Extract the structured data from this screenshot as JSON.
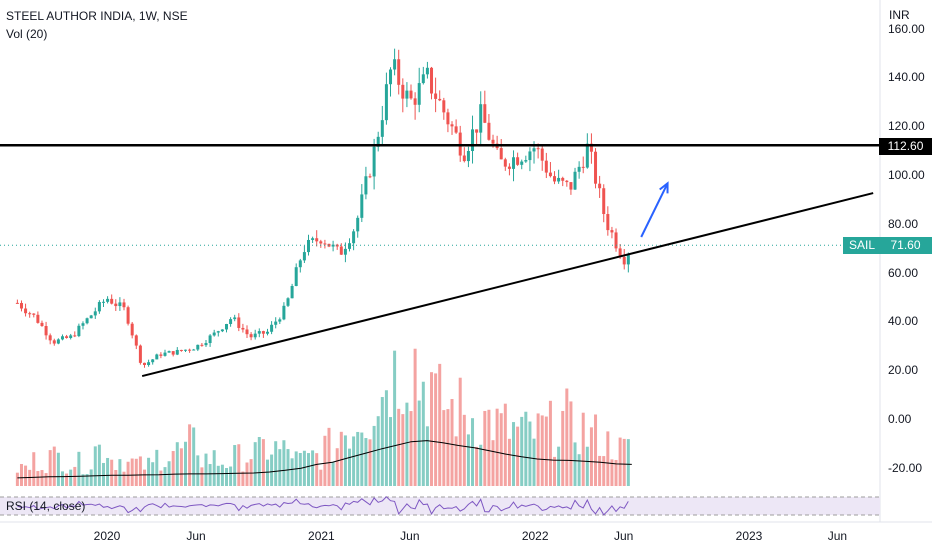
{
  "header": {
    "title": "STEEL AUTHOR INDIA, 1W, NSE",
    "volume_label": "Vol (20)",
    "rsi_label": "RSI (14, close)",
    "currency": "INR"
  },
  "price_axis": {
    "ticks": [
      {
        "value": 160,
        "label": "160.00"
      },
      {
        "value": 140,
        "label": "140.00"
      },
      {
        "value": 120,
        "label": "120.00"
      },
      {
        "value": 100,
        "label": "100.00"
      },
      {
        "value": 80,
        "label": "80.00"
      },
      {
        "value": 60,
        "label": "60.00"
      },
      {
        "value": 40,
        "label": "40.00"
      },
      {
        "value": 20,
        "label": "20.00"
      },
      {
        "value": 0,
        "label": "0.00"
      },
      {
        "value": -20,
        "label": "-20.00"
      }
    ]
  },
  "time_axis": {
    "ticks": [
      {
        "label": "2020",
        "date": "2020-01-01"
      },
      {
        "label": "Jun",
        "date": "2020-06-01"
      },
      {
        "label": "2021",
        "date": "2021-01-01"
      },
      {
        "label": "Jun",
        "date": "2021-06-01"
      },
      {
        "label": "2022",
        "date": "2022-01-01"
      },
      {
        "label": "Jun",
        "date": "2022-06-01"
      },
      {
        "label": "2023",
        "date": "2023-01-01"
      },
      {
        "label": "Jun",
        "date": "2023-06-01"
      }
    ]
  },
  "price_tags": {
    "level": "112.60",
    "symbol": "SAIL",
    "last_price": "71.60"
  },
  "colors": {
    "up": "#26a69a",
    "down": "#ef5350",
    "volume_up": "#86cdc4",
    "volume_down": "#f4a3a1",
    "rsi": "#7e57c2",
    "rsi_band": "#ede7f6",
    "annotation_arrow": "#2962ff",
    "trendline": "#000000"
  },
  "chart_data": {
    "type": "candlestick",
    "symbol": "SAIL",
    "timeframe": "1W",
    "price_range": [
      -30,
      165
    ],
    "weekly_close_path": [
      {
        "date": "2019-08-01",
        "close": 48
      },
      {
        "date": "2019-09-01",
        "close": 42
      },
      {
        "date": "2019-10-01",
        "close": 32
      },
      {
        "date": "2019-11-01",
        "close": 34
      },
      {
        "date": "2019-12-01",
        "close": 42
      },
      {
        "date": "2020-01-01",
        "close": 50
      },
      {
        "date": "2020-02-01",
        "close": 45
      },
      {
        "date": "2020-03-01",
        "close": 22
      },
      {
        "date": "2020-04-01",
        "close": 27
      },
      {
        "date": "2020-05-01",
        "close": 28
      },
      {
        "date": "2020-06-01",
        "close": 30
      },
      {
        "date": "2020-07-01",
        "close": 35
      },
      {
        "date": "2020-08-01",
        "close": 42
      },
      {
        "date": "2020-09-01",
        "close": 34
      },
      {
        "date": "2020-10-01",
        "close": 36
      },
      {
        "date": "2020-11-01",
        "close": 46
      },
      {
        "date": "2020-12-01",
        "close": 70
      },
      {
        "date": "2021-01-01",
        "close": 75
      },
      {
        "date": "2021-02-01",
        "close": 68
      },
      {
        "date": "2021-03-01",
        "close": 80
      },
      {
        "date": "2021-04-01",
        "close": 110
      },
      {
        "date": "2021-05-01",
        "close": 145
      },
      {
        "date": "2021-06-01",
        "close": 130
      },
      {
        "date": "2021-07-01",
        "close": 140
      },
      {
        "date": "2021-08-01",
        "close": 125
      },
      {
        "date": "2021-09-01",
        "close": 110
      },
      {
        "date": "2021-10-01",
        "close": 125
      },
      {
        "date": "2021-11-01",
        "close": 105
      },
      {
        "date": "2021-12-01",
        "close": 108
      },
      {
        "date": "2022-01-01",
        "close": 112
      },
      {
        "date": "2022-02-01",
        "close": 98
      },
      {
        "date": "2022-03-01",
        "close": 95
      },
      {
        "date": "2022-04-01",
        "close": 112
      },
      {
        "date": "2022-05-01",
        "close": 82
      },
      {
        "date": "2022-06-01",
        "close": 66
      },
      {
        "date": "2022-06-15",
        "close": 71.6
      }
    ],
    "horizontal_level": 112.6,
    "trendline": {
      "start": {
        "date": "2020-03-01",
        "price": 18
      },
      "end": {
        "date": "2023-08-01",
        "price": 93
      }
    },
    "projection_arrow": {
      "start": {
        "date": "2022-07-01",
        "price": 75
      },
      "end": {
        "date": "2022-08-15",
        "price": 97
      }
    },
    "volume": {
      "ma_period": 20,
      "bar_values": [
        30,
        42,
        48,
        40,
        38,
        62,
        45,
        38,
        34,
        50,
        58,
        70,
        46,
        40,
        48,
        55,
        62,
        58,
        44,
        50,
        65,
        96,
        120,
        150,
        190,
        210,
        172,
        140,
        128,
        115,
        110,
        100,
        92,
        88,
        96,
        110,
        95,
        84,
        70,
        60
      ],
      "ma_values": [
        30,
        32,
        34,
        35,
        36,
        38,
        40,
        40,
        41,
        42,
        44,
        45,
        45,
        46,
        47,
        48,
        52,
        58,
        66,
        80,
        88,
        104,
        120,
        136,
        150,
        164,
        168,
        160,
        150,
        142,
        130,
        118,
        108,
        100,
        96,
        95,
        92,
        88,
        82,
        80
      ]
    },
    "rsi": {
      "period": 14,
      "source": "close",
      "band": [
        30,
        70
      ]
    }
  }
}
